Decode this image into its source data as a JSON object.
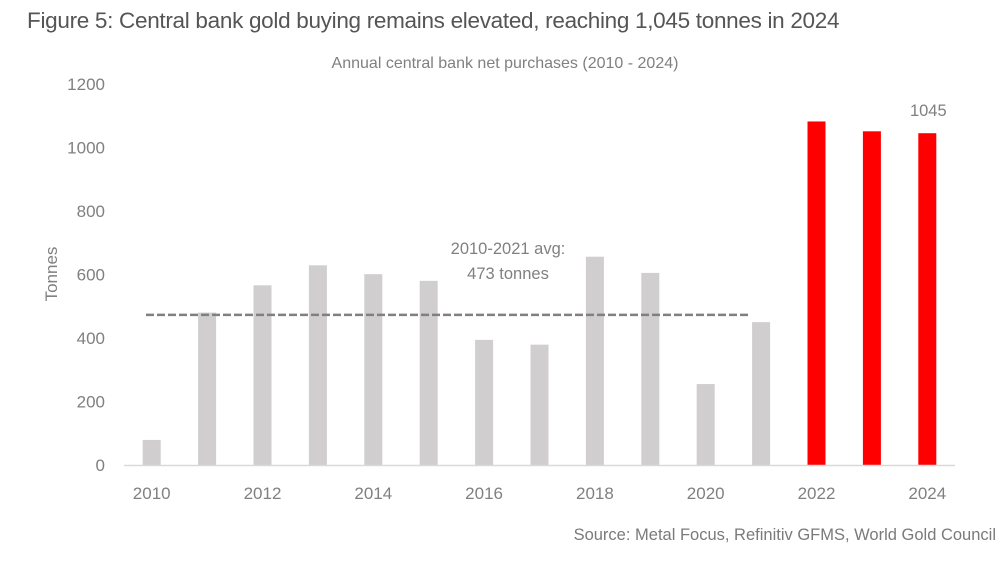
{
  "figure": {
    "title": "Figure 5: Central bank gold buying remains elevated, reaching 1,045 tonnes in 2024",
    "source": "Source: Metal Focus, Refinitiv GFMS, World Gold Council"
  },
  "chart_data": {
    "type": "bar",
    "title": "Annual central bank net purchases (2010 - 2024)",
    "xlabel": "",
    "ylabel": "Tonnes",
    "ylim": [
      0,
      1200
    ],
    "yticks": [
      0,
      200,
      400,
      600,
      800,
      1000,
      1200
    ],
    "xtick_labels": [
      "2010",
      "2012",
      "2014",
      "2016",
      "2018",
      "2020",
      "2022",
      "2024"
    ],
    "grid": false,
    "categories": [
      "2010",
      "2011",
      "2012",
      "2013",
      "2014",
      "2015",
      "2016",
      "2017",
      "2018",
      "2019",
      "2020",
      "2021",
      "2022",
      "2023",
      "2024"
    ],
    "values": [
      79,
      480,
      566,
      629,
      601,
      580,
      394,
      379,
      656,
      605,
      255,
      450,
      1082,
      1051,
      1045
    ],
    "highlight_from": "2022",
    "colors": {
      "default": "#d0cece",
      "highlight": "#ff0000",
      "avg_line": "#808080",
      "axis": "#d9d9d9",
      "text": "#808080"
    },
    "average_line": {
      "from": "2010",
      "to": "2021",
      "value": 473
    },
    "annotations": [
      {
        "text_lines": [
          "2010-2021 avg:",
          "473 tonnes"
        ],
        "target": "average_line"
      },
      {
        "text": "1045",
        "target": "2024"
      }
    ]
  }
}
